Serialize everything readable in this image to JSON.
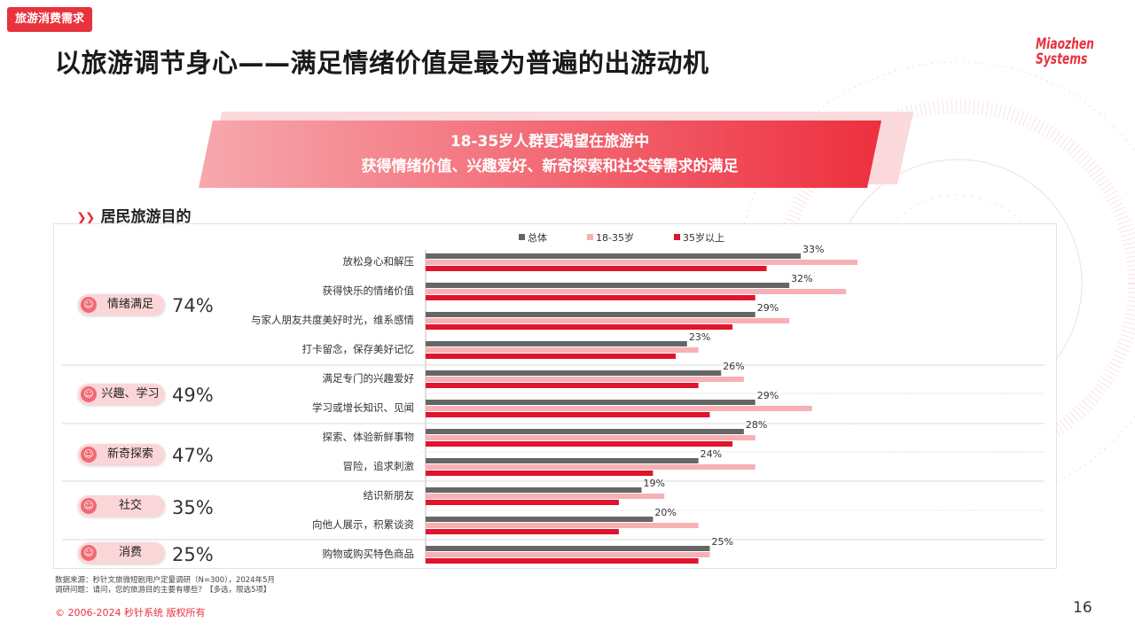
{
  "tag": "旅游消费需求",
  "title": "以旅游调节身心——满足情绪价值是最为普遍的出游动机",
  "logo": {
    "line1": "Miaozhen",
    "line2": "Systems"
  },
  "banner": {
    "line1": "18-35岁人群更渴望在旅游中",
    "line2": "获得情绪价值、兴趣爱好、新奇探索和社交等需求的满足"
  },
  "section_title": "居民旅游目的",
  "colors": {
    "total": "#666666",
    "young": "#f7b0b5",
    "older": "#e0142d",
    "accent": "#e8323c"
  },
  "groups": [
    {
      "label": "情绪满足",
      "pct": "74%"
    },
    {
      "label": "兴趣、学习",
      "pct": "49%"
    },
    {
      "label": "新奇探索",
      "pct": "47%"
    },
    {
      "label": "社交",
      "pct": "35%"
    },
    {
      "label": "消费",
      "pct": "25%"
    }
  ],
  "chart_data": {
    "type": "bar",
    "orientation": "horizontal",
    "legend_position": "top",
    "xlim": [
      0,
      55
    ],
    "categories": [
      "放松身心和解压",
      "获得快乐的情绪价值",
      "与家人朋友共度美好时光，维系感情",
      "打卡留念，保存美好记忆",
      "满足专门的兴趣爱好",
      "学习或增长知识、见闻",
      "探索、体验新鲜事物",
      "冒险，追求刺激",
      "结识新朋友",
      "向他人展示，积累谈资",
      "购物或购买特色商品"
    ],
    "series": [
      {
        "name": "总体",
        "values": [
          33,
          32,
          29,
          23,
          26,
          29,
          28,
          24,
          19,
          20,
          25
        ]
      },
      {
        "name": "18-35岁",
        "values": [
          38,
          37,
          32,
          24,
          28,
          34,
          29,
          29,
          21,
          24,
          25
        ]
      },
      {
        "name": "35岁以上",
        "values": [
          30,
          29,
          27,
          22,
          24,
          25,
          27,
          20,
          17,
          17,
          24
        ]
      }
    ],
    "data_labels": [
      "33%",
      "32%",
      "29%",
      "23%",
      "26%",
      "29%",
      "28%",
      "24%",
      "19%",
      "20%",
      "25%"
    ]
  },
  "footnote": {
    "line1": "数据来源：秒针文旅微短剧用户定量调研（N=300），2024年5月",
    "line2": "调研问题：请问，您的旅游目的主要有哪些？【多选，限选5项】"
  },
  "copyright": "© 2006-2024 秒针系统 版权所有",
  "page_number": "16"
}
